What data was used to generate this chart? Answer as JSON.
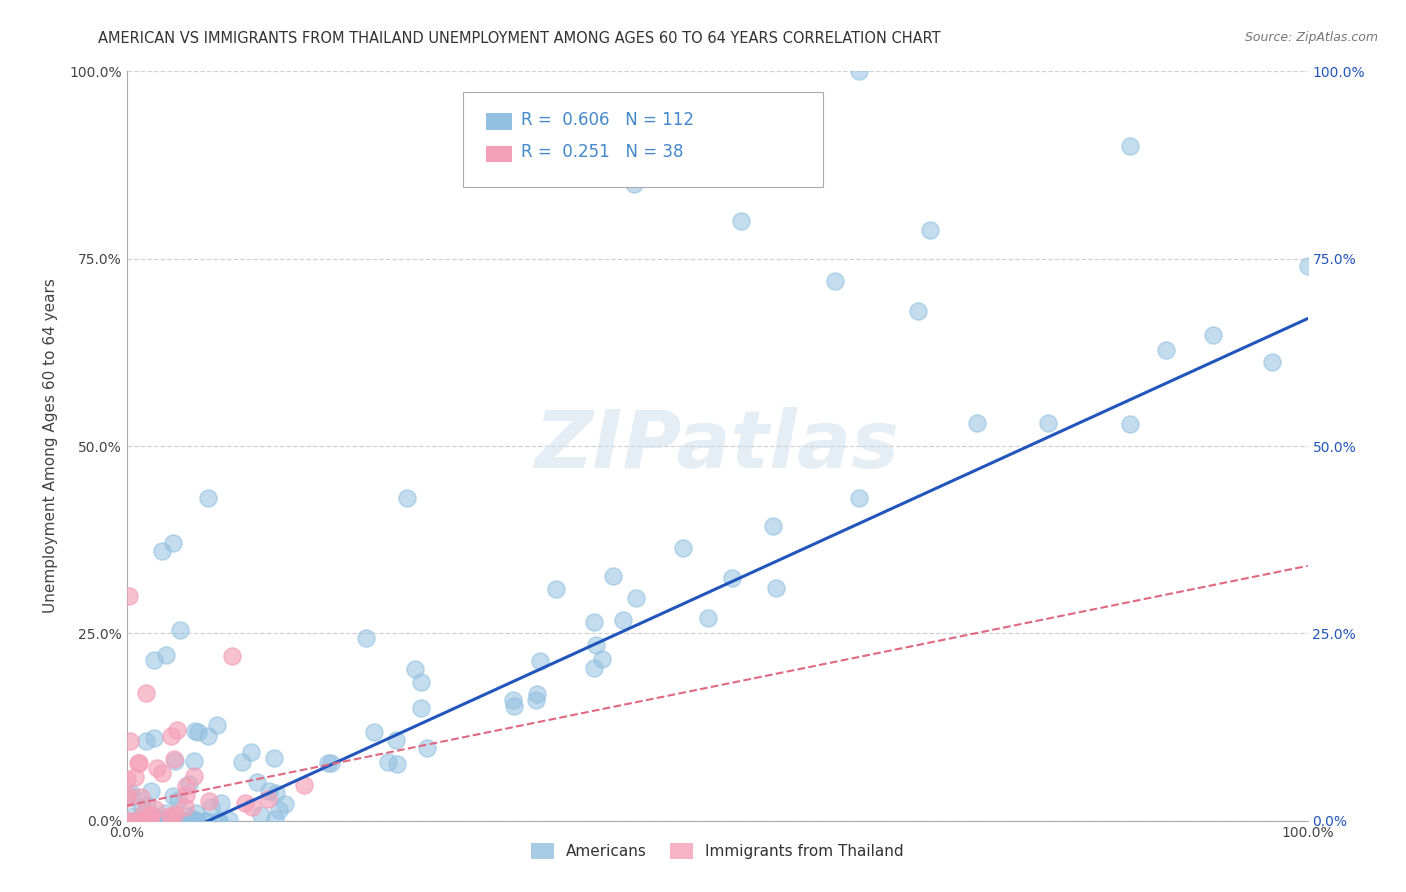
{
  "title": "AMERICAN VS IMMIGRANTS FROM THAILAND UNEMPLOYMENT AMONG AGES 60 TO 64 YEARS CORRELATION CHART",
  "source": "Source: ZipAtlas.com",
  "ylabel": "Unemployment Among Ages 60 to 64 years",
  "xlim": [
    0,
    1
  ],
  "ylim": [
    0,
    1
  ],
  "xtick_labels": [
    "0.0%",
    "100.0%"
  ],
  "ytick_labels": [
    "0.0%",
    "25.0%",
    "50.0%",
    "75.0%",
    "100.0%"
  ],
  "ytick_values": [
    0.0,
    0.25,
    0.5,
    0.75,
    1.0
  ],
  "xtick_values": [
    0.0,
    1.0
  ],
  "right_ytick_labels": [
    "0.0%",
    "25.0%",
    "50.0%",
    "75.0%",
    "100.0%"
  ],
  "right_ytick_values": [
    0.0,
    0.25,
    0.5,
    0.75,
    1.0
  ],
  "legend_labels_bottom": [
    "Americans",
    "Immigrants from Thailand"
  ],
  "watermark": "ZIPatlas",
  "background_color": "#ffffff",
  "grid_color": "#cccccc",
  "blue_color": "#92c0e0",
  "pink_color": "#f4a0b8",
  "blue_line_color": "#2255bb",
  "pink_line_color": "#e06880",
  "title_fontsize": 10.5,
  "axis_label_fontsize": 11,
  "tick_fontsize": 10,
  "legend_R_color": "#4488cc",
  "americans_R": 0.606,
  "americans_N": 112,
  "thailand_R": 0.251,
  "thailand_N": 38,
  "blue_intercept": -0.05,
  "blue_slope": 0.72,
  "pink_intercept": 0.02,
  "pink_slope": 0.32
}
